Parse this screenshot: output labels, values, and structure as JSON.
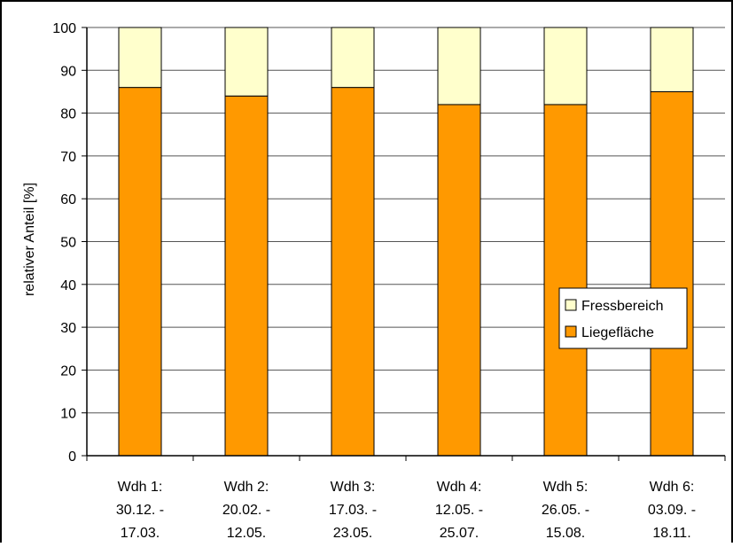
{
  "chart_data": {
    "type": "bar",
    "stacked": true,
    "title": "",
    "xlabel": "",
    "ylabel": "relativer Anteil [%]",
    "ylim": [
      0,
      100
    ],
    "yticks": [
      0,
      10,
      20,
      30,
      40,
      50,
      60,
      70,
      80,
      90,
      100
    ],
    "grid": true,
    "legend_position": "right",
    "categories": [
      [
        "Wdh 1:",
        "30.12. -",
        "17.03."
      ],
      [
        "Wdh 2:",
        "20.02. -",
        "12.05."
      ],
      [
        "Wdh 3:",
        "17.03. -",
        "23.05."
      ],
      [
        "Wdh 4:",
        "12.05. -",
        "25.07."
      ],
      [
        "Wdh 5:",
        "26.05. -",
        "15.08."
      ],
      [
        "Wdh 6:",
        "03.09. -",
        "18.11."
      ]
    ],
    "series": [
      {
        "name": "Liegefläche",
        "color": "#ff9900",
        "values": [
          86,
          84,
          86,
          82,
          82,
          85
        ]
      },
      {
        "name": "Fressbereich",
        "color": "#ffffcc",
        "values": [
          14,
          16,
          14,
          18,
          18,
          15
        ]
      }
    ],
    "legend_order": [
      "Fressbereich",
      "Liegefläche"
    ]
  }
}
